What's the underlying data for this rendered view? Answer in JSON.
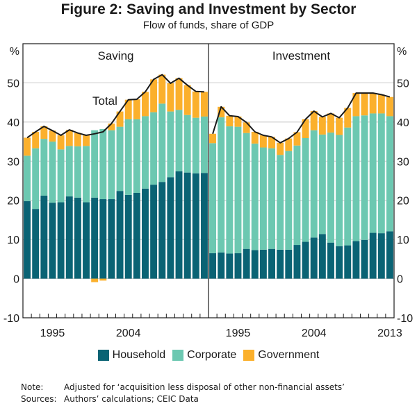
{
  "figure": {
    "title": "Figure 2: Saving and Investment by Sector",
    "subtitle": "Flow of funds, share of GDP"
  },
  "colors": {
    "household": "#0A6374",
    "corporate": "#6CC8B1",
    "government": "#FBB02C",
    "total_line": "#1a1a1a"
  },
  "legend": [
    {
      "key": "household",
      "label": "Household"
    },
    {
      "key": "corporate",
      "label": "Corporate"
    },
    {
      "key": "government",
      "label": "Government"
    }
  ],
  "notes": {
    "note_label": "Note:",
    "note_text": "Adjusted for ‘acquisition less disposal of other non-financial assets’",
    "sources_label": "Sources:",
    "sources_text": "Authors’ calculations; CEIC Data"
  },
  "chart_data": [
    {
      "type": "bar",
      "stacked": true,
      "title": "Saving",
      "ylabel": "%",
      "ylim": [
        -10,
        60
      ],
      "yticks": [
        -10,
        0,
        10,
        20,
        30,
        40,
        50
      ],
      "grid": true,
      "x": [
        1992,
        1993,
        1994,
        1995,
        1996,
        1997,
        1998,
        1999,
        2000,
        2001,
        2002,
        2003,
        2004,
        2005,
        2006,
        2007,
        2008,
        2009,
        2010,
        2011,
        2012,
        2013
      ],
      "xtick_labels": [
        "1995",
        "2004"
      ],
      "annotation": "Total",
      "series": [
        {
          "name": "Household",
          "values": [
            19.8,
            17.8,
            21.2,
            19.4,
            19.5,
            21.0,
            20.7,
            19.5,
            20.7,
            20.3,
            20.3,
            22.4,
            21.4,
            21.9,
            23.0,
            24.0,
            24.7,
            25.9,
            27.4,
            27.1,
            26.9,
            27.0
          ]
        },
        {
          "name": "Corporate",
          "values": [
            11.6,
            15.5,
            14.5,
            15.6,
            13.5,
            12.9,
            13.1,
            14.4,
            17.2,
            17.9,
            17.6,
            16.4,
            19.3,
            18.8,
            18.5,
            18.5,
            20.0,
            16.8,
            15.7,
            14.7,
            14.2,
            14.4
          ]
        },
        {
          "name": "Government",
          "values": [
            4.6,
            4.2,
            3.2,
            2.8,
            3.6,
            4.1,
            3.4,
            2.7,
            -0.9,
            -0.5,
            1.7,
            3.9,
            5.0,
            5.1,
            6.2,
            8.4,
            7.4,
            7.2,
            8.1,
            7.6,
            6.7,
            6.3
          ]
        },
        {
          "name": "Total",
          "type": "line",
          "values": [
            36.0,
            37.5,
            38.9,
            37.8,
            36.6,
            38.0,
            37.2,
            36.6,
            37.0,
            37.5,
            39.6,
            42.7,
            45.7,
            45.8,
            47.7,
            50.9,
            52.1,
            49.9,
            51.2,
            49.4,
            47.8,
            47.7
          ]
        }
      ]
    },
    {
      "type": "bar",
      "stacked": true,
      "title": "Investment",
      "ylabel": "%",
      "ylim": [
        -10,
        60
      ],
      "yticks": [
        -10,
        0,
        10,
        20,
        30,
        40,
        50
      ],
      "grid": true,
      "x": [
        1992,
        1993,
        1994,
        1995,
        1996,
        1997,
        1998,
        1999,
        2000,
        2001,
        2002,
        2003,
        2004,
        2005,
        2006,
        2007,
        2008,
        2009,
        2010,
        2011,
        2012,
        2013
      ],
      "xtick_labels": [
        "1995",
        "2004",
        "2013"
      ],
      "series": [
        {
          "name": "Household",
          "values": [
            6.5,
            6.7,
            6.4,
            6.5,
            7.6,
            7.3,
            7.4,
            7.6,
            7.4,
            7.4,
            8.6,
            9.4,
            10.5,
            11.4,
            9.2,
            8.3,
            8.5,
            9.6,
            9.9,
            11.7,
            11.6,
            12.1
          ]
        },
        {
          "name": "Corporate",
          "values": [
            28.1,
            34.5,
            32.5,
            32.3,
            29.6,
            27.2,
            26.1,
            25.7,
            24.2,
            25.2,
            25.4,
            26.5,
            27.4,
            25.4,
            28.1,
            28.4,
            30.1,
            31.9,
            31.8,
            30.5,
            30.6,
            29.4
          ]
        },
        {
          "name": "Government",
          "values": [
            2.4,
            2.7,
            2.7,
            2.6,
            2.7,
            3.0,
            3.1,
            2.9,
            3.1,
            3.2,
            3.4,
            4.8,
            4.9,
            4.5,
            4.9,
            4.4,
            5.0,
            5.9,
            5.7,
            5.2,
            4.8,
            4.9
          ]
        },
        {
          "name": "Total",
          "type": "line",
          "values": [
            37.0,
            43.9,
            41.6,
            41.4,
            39.9,
            37.5,
            36.6,
            36.2,
            34.7,
            35.8,
            37.4,
            40.7,
            42.8,
            41.3,
            42.2,
            41.1,
            43.6,
            47.4,
            47.4,
            47.4,
            47.0,
            46.4
          ]
        }
      ]
    }
  ]
}
